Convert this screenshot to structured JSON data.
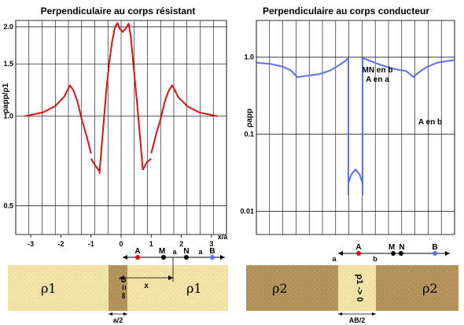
{
  "chart_data": [
    {
      "type": "line",
      "title": "Perpendiculaire au corps résistant",
      "ylabel": "ρapp/ρ1",
      "xlabel": "x/a",
      "xlim": [
        -3.5,
        3.5
      ],
      "ylim": [
        0.4,
        2.1
      ],
      "yscale": "log",
      "grid": true,
      "x_ticks": [
        -3,
        -2,
        -1,
        0,
        1,
        2,
        3
      ],
      "y_ticks": [
        0.5,
        1.0,
        1.5,
        2.0
      ],
      "series": [
        {
          "color": "#e01010",
          "segments": [
            [
              [
                -3.2,
                1.0
              ],
              [
                -2.6,
                1.03
              ],
              [
                -2.2,
                1.08
              ],
              [
                -1.9,
                1.16
              ],
              [
                -1.7,
                1.27
              ],
              [
                -1.58,
                1.22
              ],
              [
                -1.45,
                1.12
              ],
              [
                -1.3,
                0.97
              ],
              [
                -1.15,
                0.86
              ],
              [
                -1.0,
                0.75
              ]
            ],
            [
              [
                -1.0,
                0.72
              ],
              [
                -0.85,
                0.68
              ],
              [
                -0.75,
                0.66
              ],
              [
                -0.7,
                0.65
              ]
            ],
            [
              [
                -0.72,
                0.64
              ],
              [
                -0.6,
                0.9
              ],
              [
                -0.5,
                1.2
              ],
              [
                -0.4,
                1.5
              ],
              [
                -0.3,
                1.78
              ],
              [
                -0.2,
                2.0
              ],
              [
                -0.12,
                2.06
              ],
              [
                -0.05,
                1.97
              ],
              [
                0.05,
                1.92
              ],
              [
                0.15,
                1.97
              ],
              [
                0.25,
                2.05
              ],
              [
                0.32,
                1.85
              ],
              [
                0.42,
                1.45
              ],
              [
                0.55,
                1.05
              ],
              [
                0.65,
                0.8
              ],
              [
                0.72,
                0.66
              ]
            ],
            [
              [
                0.72,
                0.66
              ],
              [
                0.85,
                0.7
              ],
              [
                1.0,
                0.72
              ]
            ],
            [
              [
                1.0,
                0.75
              ],
              [
                1.15,
                0.86
              ],
              [
                1.3,
                0.97
              ],
              [
                1.45,
                1.12
              ],
              [
                1.58,
                1.22
              ],
              [
                1.7,
                1.27
              ],
              [
                1.9,
                1.16
              ],
              [
                2.2,
                1.08
              ],
              [
                2.6,
                1.03
              ],
              [
                3.2,
                1.0
              ]
            ]
          ]
        }
      ],
      "diagram": {
        "electrode_labels": [
          "A",
          "M",
          "a",
          "N",
          "a",
          "B"
        ],
        "rho_left": "ρ1",
        "rho_center": "ρ = ∞",
        "rho_right": "ρ1",
        "distance_label": "x",
        "width_label": "a/2",
        "electrode_colors": {
          "A": "#e01010",
          "B": "#5b6ef5"
        }
      }
    },
    {
      "type": "line",
      "title": "Perpendiculaire au corps conducteur",
      "ylabel": "ρapp",
      "xlim": [
        -3.5,
        3.5
      ],
      "ylim": [
        0.005,
        3.0
      ],
      "yscale": "log",
      "grid": true,
      "y_ticks": [
        0.01,
        0.1,
        1.0
      ],
      "y_tick_labels": [
        "0.01",
        "0.1",
        "1.0"
      ],
      "annotations": [
        "MN en b",
        "A en a",
        "A en b"
      ],
      "series": [
        {
          "color": "#5b6ef5",
          "segments": [
            [
              [
                -3.5,
                0.85
              ],
              [
                -3.0,
                0.82
              ],
              [
                -2.6,
                0.76
              ],
              [
                -2.3,
                0.68
              ],
              [
                -2.15,
                0.6
              ],
              [
                -2.05,
                0.55
              ],
              [
                -1.8,
                0.57
              ],
              [
                -1.3,
                0.6
              ],
              [
                -0.9,
                0.67
              ],
              [
                -0.6,
                0.78
              ],
              [
                -0.35,
                0.9
              ],
              [
                -0.25,
                0.98
              ]
            ],
            [
              [
                -0.25,
                0.98
              ],
              [
                -0.25,
                0.016
              ]
            ],
            [
              [
                -0.25,
                0.023
              ],
              [
                -0.15,
                0.03
              ],
              [
                0.0,
                0.035
              ],
              [
                0.15,
                0.03
              ],
              [
                0.25,
                0.023
              ]
            ],
            [
              [
                0.25,
                0.016
              ],
              [
                0.25,
                0.98
              ]
            ],
            [
              [
                0.25,
                0.98
              ],
              [
                0.6,
                0.87
              ],
              [
                1.0,
                0.77
              ],
              [
                1.4,
                0.7
              ],
              [
                1.8,
                0.66
              ],
              [
                2.05,
                0.55
              ],
              [
                2.2,
                0.62
              ],
              [
                2.5,
                0.74
              ],
              [
                2.9,
                0.85
              ],
              [
                3.3,
                0.9
              ],
              [
                3.5,
                0.92
              ]
            ]
          ]
        }
      ],
      "diagram": {
        "electrode_labels": [
          "A",
          "M",
          "N",
          "B"
        ],
        "region_labels": [
          "a",
          "b"
        ],
        "rho_left": "ρ2",
        "rho_center": "ρ1 -> 0",
        "rho_right": "ρ2",
        "width_label": "AB/2",
        "electrode_colors": {
          "A": "#e01010",
          "B": "#5b6ef5"
        }
      }
    }
  ]
}
